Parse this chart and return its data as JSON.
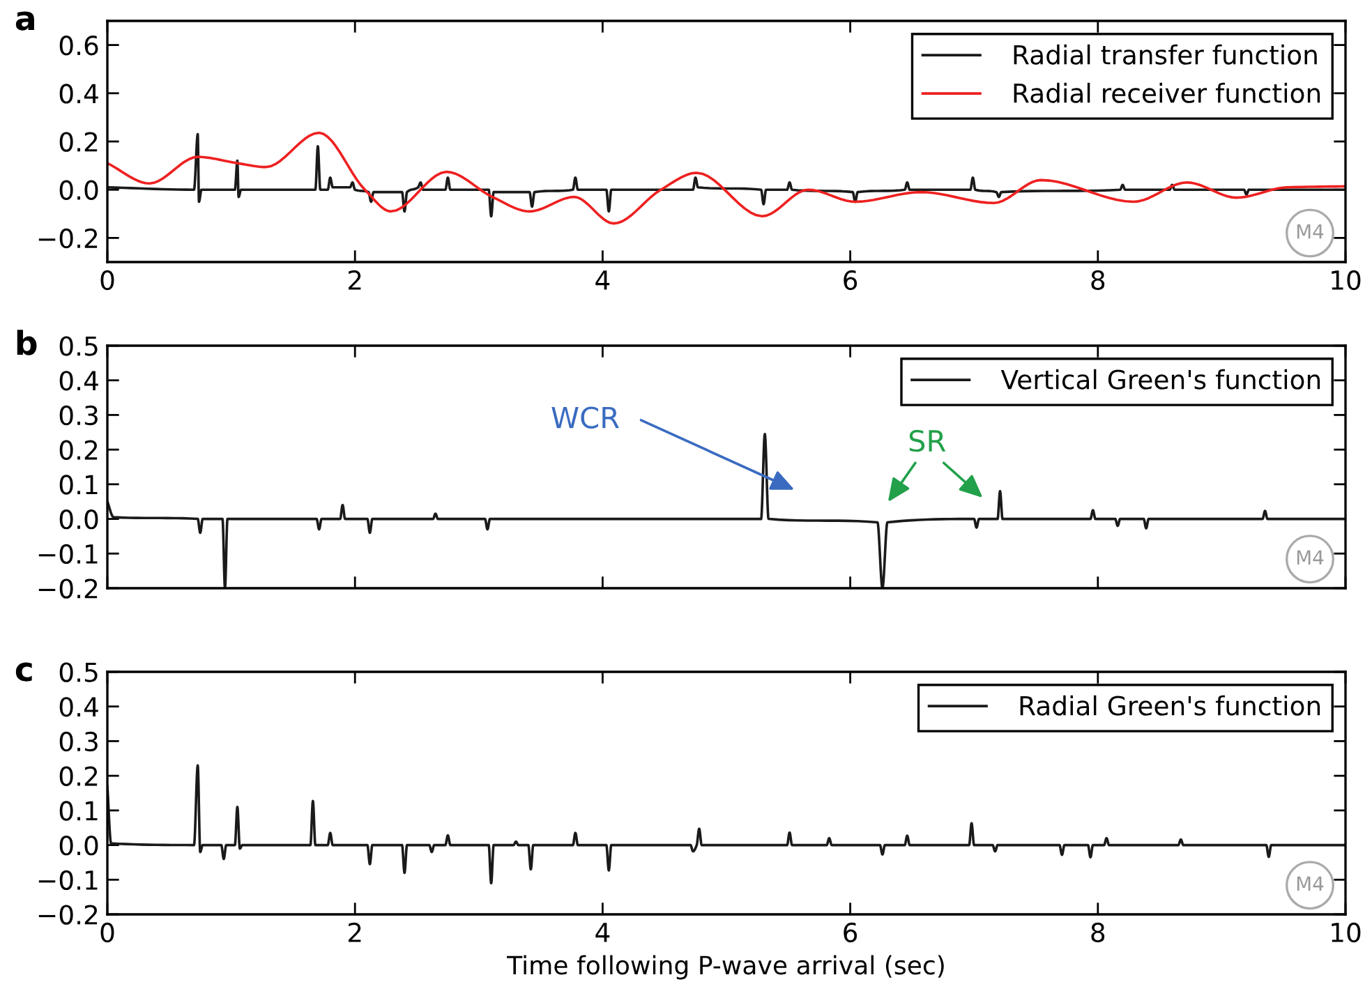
{
  "chart_data": [
    {
      "type": "line",
      "title": "a",
      "xlim": [
        0,
        10
      ],
      "xticks": [
        0,
        2,
        4,
        6,
        8,
        10
      ],
      "ylim": [
        -0.3,
        0.7
      ],
      "yticks": [
        {
          "value": -0.2,
          "label": "−0.2"
        },
        {
          "value": 0,
          "label": "0.0"
        },
        0.2,
        0.4,
        0.6
      ],
      "legend": "top right",
      "grid": false,
      "annotations": [
        "M4"
      ],
      "series": [
        {
          "name": "Radial transfer function",
          "color": "#1a1a1a",
          "x": [
            0,
            0.7,
            0.73,
            0.74,
            0.76,
            1.03,
            1.05,
            1.06,
            1.08,
            1.68,
            1.7,
            1.72,
            1.78,
            1.8,
            1.82,
            1.96,
            1.98,
            2.0,
            2.11,
            2.13,
            2.15,
            2.38,
            2.4,
            2.42,
            2.51,
            2.53,
            2.55,
            2.73,
            2.75,
            2.77,
            3.08,
            3.1,
            3.12,
            3.41,
            3.43,
            3.45,
            3.76,
            3.78,
            3.8,
            4.03,
            4.05,
            4.07,
            4.73,
            4.75,
            4.77,
            5.28,
            5.3,
            5.32,
            5.49,
            5.51,
            5.53,
            6.02,
            6.04,
            6.06,
            6.44,
            6.46,
            6.48,
            6.97,
            6.99,
            7.01,
            7.18,
            7.2,
            7.22,
            8.18,
            8.2,
            8.22,
            8.58,
            8.6,
            8.62,
            9.18,
            9.2,
            9.22,
            10
          ],
          "values": [
            0.01,
            0,
            0.23,
            -0.05,
            0,
            0,
            0.12,
            -0.03,
            0,
            0,
            0.18,
            0,
            0,
            0.05,
            0.01,
            0.01,
            0.03,
            0,
            -0.01,
            -0.05,
            -0.01,
            -0.01,
            -0.09,
            -0.01,
            0.01,
            0.03,
            0,
            0,
            0.05,
            0,
            0,
            -0.11,
            -0.01,
            -0.01,
            -0.07,
            -0.01,
            0,
            0.05,
            0,
            0,
            -0.09,
            0,
            0,
            0.05,
            0.01,
            0,
            -0.06,
            0,
            0,
            0.03,
            0,
            -0.01,
            -0.05,
            -0.01,
            0,
            0.03,
            0,
            0,
            0.05,
            0,
            -0.01,
            -0.03,
            -0.01,
            0,
            0.02,
            0,
            0,
            0.02,
            0,
            0,
            -0.02,
            0,
            0
          ]
        },
        {
          "name": "Radial receiver function",
          "color": "#ee2020",
          "x": [
            0,
            0.34,
            0.73,
            1.05,
            1.28,
            1.71,
            2.08,
            2.29,
            2.74,
            3.11,
            3.41,
            3.77,
            4.09,
            4.47,
            4.76,
            5.29,
            5.66,
            6.04,
            6.57,
            7.16,
            7.54,
            8.29,
            8.72,
            9.12,
            9.53,
            10
          ],
          "values": [
            0.11,
            0.026,
            0.136,
            0.11,
            0.094,
            0.236,
            0,
            -0.09,
            0.074,
            -0.03,
            -0.09,
            -0.03,
            -0.14,
            0,
            0.07,
            -0.11,
            0,
            -0.05,
            -0.01,
            -0.055,
            0.04,
            -0.05,
            0.03,
            -0.033,
            0.01,
            0.014
          ]
        }
      ]
    },
    {
      "type": "line",
      "title": "b",
      "xlim": [
        0,
        10
      ],
      "xticks": [
        0,
        2,
        4,
        6,
        8,
        10
      ],
      "ylim": [
        -0.2,
        0.5
      ],
      "yticks": [
        {
          "value": -0.2,
          "label": "−0.2"
        },
        {
          "value": -0.1,
          "label": "−0.1"
        },
        {
          "value": 0,
          "label": "0.0"
        },
        0.1,
        0.2,
        0.3,
        0.4,
        0.5
      ],
      "tick_labels": "y",
      "legend": "top right",
      "grid": false,
      "annotations": [
        "WCR",
        "SR",
        "M4"
      ],
      "series": [
        {
          "name": "Vertical Green's function",
          "color": "#1a1a1a",
          "x": [
            0,
            0.05,
            0.73,
            0.75,
            0.77,
            0.93,
            0.95,
            0.97,
            1.69,
            1.71,
            1.73,
            1.88,
            1.9,
            1.92,
            2.1,
            2.12,
            2.14,
            2.63,
            2.65,
            2.67,
            3.05,
            3.07,
            3.09,
            5.28,
            5.31,
            5.34,
            6.22,
            6.26,
            6.3,
            7.0,
            7.02,
            7.04,
            7.19,
            7.21,
            7.23,
            7.94,
            7.96,
            7.98,
            8.14,
            8.16,
            8.18,
            8.37,
            8.39,
            8.41,
            9.33,
            9.35,
            9.37,
            10
          ],
          "values": [
            0.05,
            0.005,
            0,
            -0.04,
            0,
            0,
            -0.2,
            0,
            0,
            -0.03,
            0,
            0,
            0.04,
            0,
            0,
            -0.04,
            0,
            0,
            0.015,
            0,
            0,
            -0.03,
            0,
            0,
            0.245,
            0,
            -0.01,
            -0.2,
            -0.01,
            0,
            -0.025,
            0,
            0,
            0.08,
            0,
            0,
            0.025,
            0,
            0,
            -0.02,
            0,
            0,
            -0.027,
            0,
            0,
            0.023,
            0,
            0
          ]
        }
      ]
    },
    {
      "type": "line",
      "title": "c",
      "xlim": [
        0,
        10
      ],
      "xticks": [
        0,
        2,
        4,
        6,
        8,
        10
      ],
      "ylim": [
        -0.2,
        0.5
      ],
      "yticks": [
        {
          "value": -0.2,
          "label": "−0.2"
        },
        {
          "value": -0.1,
          "label": "−0.1"
        },
        {
          "value": 0,
          "label": "0.0"
        },
        0.1,
        0.2,
        0.3,
        0.4,
        0.5
      ],
      "xlabel": "Time following P-wave arrival (sec)",
      "legend": "top right",
      "grid": false,
      "annotations": [
        "M4"
      ],
      "series": [
        {
          "name": "Radial Green's function",
          "color": "#1a1a1a",
          "x": [
            0,
            0.03,
            0.7,
            0.73,
            0.75,
            0.77,
            0.92,
            0.94,
            0.96,
            1.03,
            1.05,
            1.07,
            1.09,
            1.64,
            1.66,
            1.68,
            1.78,
            1.8,
            1.82,
            2.1,
            2.12,
            2.14,
            2.38,
            2.4,
            2.42,
            2.6,
            2.62,
            2.64,
            2.73,
            2.75,
            2.77,
            3.08,
            3.1,
            3.12,
            3.28,
            3.3,
            3.32,
            3.4,
            3.42,
            3.44,
            3.76,
            3.78,
            3.8,
            4.03,
            4.05,
            4.07,
            4.71,
            4.73,
            4.76,
            4.78,
            4.8,
            5.49,
            5.51,
            5.53,
            5.81,
            5.83,
            5.85,
            6.24,
            6.26,
            6.28,
            6.44,
            6.46,
            6.48,
            6.96,
            6.98,
            7.0,
            7.15,
            7.17,
            7.19,
            7.69,
            7.71,
            7.73,
            7.92,
            7.94,
            7.96,
            8.05,
            8.07,
            8.09,
            8.65,
            8.67,
            8.69,
            9.36,
            9.38,
            9.4,
            10
          ],
          "values": [
            0.17,
            0.005,
            0,
            0.23,
            -0.02,
            0,
            0,
            -0.04,
            0,
            0,
            0.11,
            -0.01,
            0,
            0,
            0.127,
            0,
            0,
            0.035,
            0,
            0,
            -0.055,
            0,
            0,
            -0.08,
            0,
            0,
            -0.02,
            0,
            0,
            0.028,
            0,
            0,
            -0.11,
            0,
            0,
            0.01,
            0,
            0,
            -0.07,
            0,
            0,
            0.035,
            0,
            0,
            -0.073,
            0,
            0,
            -0.018,
            0,
            0.047,
            0,
            0,
            0.036,
            0,
            0,
            0.02,
            0,
            0,
            -0.027,
            0,
            0,
            0.027,
            0,
            0,
            0.063,
            0,
            0,
            -0.018,
            0,
            0,
            -0.028,
            0,
            0,
            -0.035,
            0,
            0,
            0.02,
            0,
            0,
            0.016,
            0,
            0,
            -0.034,
            0,
            0
          ]
        }
      ]
    }
  ]
}
